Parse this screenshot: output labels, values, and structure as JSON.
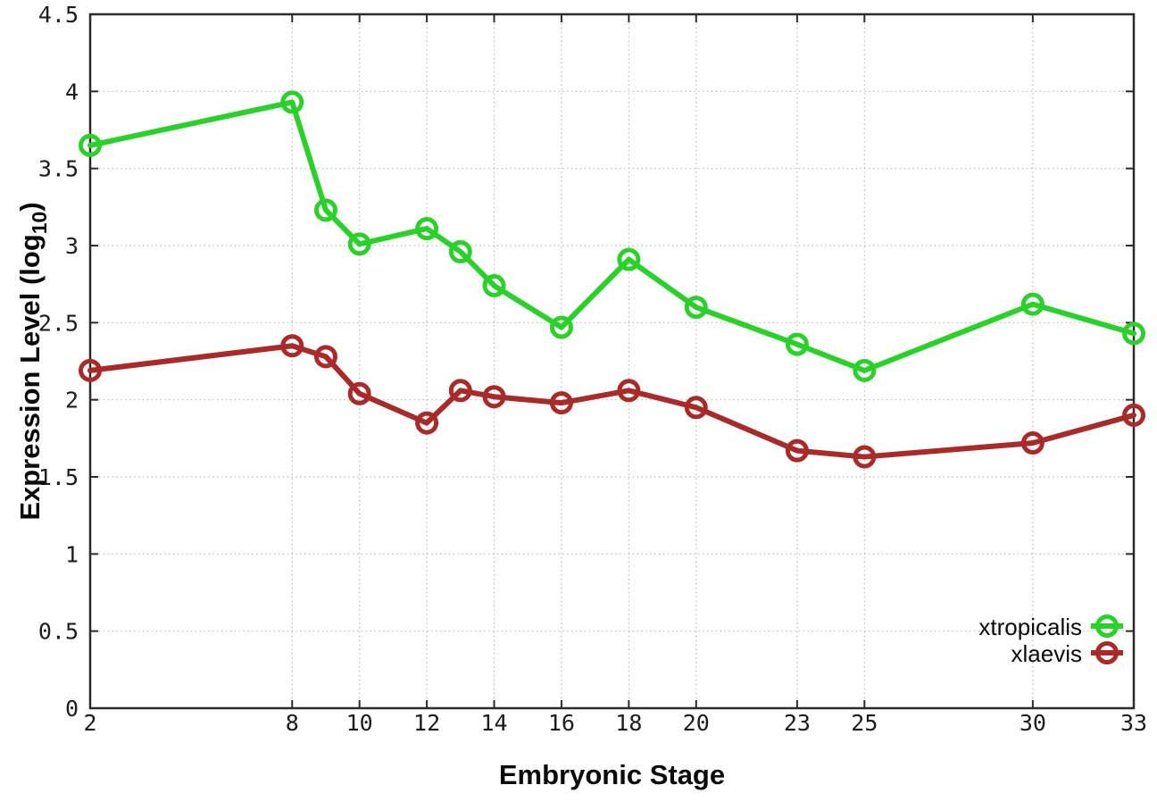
{
  "chart_data": {
    "type": "line",
    "title": "",
    "xlabel": "Embryonic Stage",
    "ylabel": "Expression Level (log10)",
    "ylabel_parts": {
      "base": "Expression Level (log",
      "sub": "10",
      "close": ")"
    },
    "xlim": [
      2,
      33
    ],
    "ylim": [
      0,
      4.5
    ],
    "grid": true,
    "legend_position": "bottom-right",
    "x_ticks": [
      2,
      8,
      10,
      12,
      14,
      16,
      18,
      20,
      23,
      25,
      30,
      33
    ],
    "x_tick_labels": [
      "2",
      "8",
      "10",
      "12",
      "14",
      "16",
      "18",
      "20",
      "23",
      "25",
      "30",
      "33"
    ],
    "y_ticks": [
      0,
      0.5,
      1,
      1.5,
      2,
      2.5,
      3,
      3.5,
      4,
      4.5
    ],
    "y_tick_labels": [
      "0",
      "0.5",
      "1",
      "1.5",
      "2",
      "2.5",
      "3",
      "3.5",
      "4",
      "4.5"
    ],
    "x": [
      2,
      8,
      9,
      10,
      12,
      13,
      14,
      16,
      18,
      20,
      23,
      25,
      30,
      33
    ],
    "series": [
      {
        "name": "xtropicalis",
        "color": "#2bd12b",
        "marker": "open-circle",
        "values": [
          3.65,
          3.93,
          3.23,
          3.01,
          3.11,
          2.96,
          2.74,
          2.47,
          2.91,
          2.6,
          2.36,
          2.19,
          2.62,
          2.43
        ]
      },
      {
        "name": "xlaevis",
        "color": "#aa2929",
        "marker": "open-circle",
        "values": [
          2.19,
          2.35,
          2.28,
          2.04,
          1.85,
          2.06,
          2.02,
          1.98,
          2.06,
          1.95,
          1.67,
          1.63,
          1.72,
          1.9
        ]
      }
    ],
    "colors": {
      "grid": "#b8b8b8",
      "border": "#2b2b2b",
      "tick_text": "#1c1c1c",
      "title_text": "#0a0a0a"
    }
  }
}
